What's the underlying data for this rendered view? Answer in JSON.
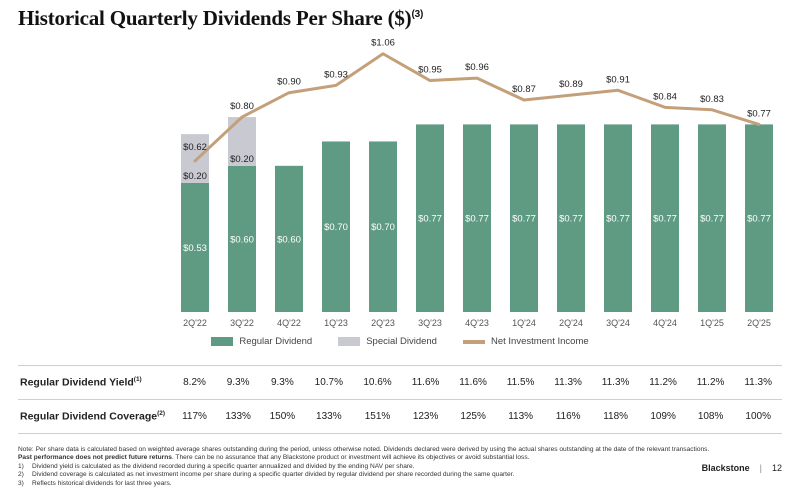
{
  "title": "Historical Quarterly Dividends Per Share ($)",
  "title_footnote": "(3)",
  "colors": {
    "regular": "#5f9a82",
    "special": "#c8c9d1",
    "nii": "#c4a07a"
  },
  "legend": {
    "regular": "Regular Dividend",
    "special": "Special Dividend",
    "nii": "Net Investment Income"
  },
  "chart_data": {
    "type": "bar",
    "categories": [
      "2Q'22",
      "3Q'22",
      "4Q'22",
      "1Q'23",
      "2Q'23",
      "3Q'23",
      "4Q'23",
      "1Q'24",
      "2Q'24",
      "3Q'24",
      "4Q'24",
      "1Q'25",
      "2Q'25"
    ],
    "series": [
      {
        "name": "Regular Dividend",
        "kind": "bar-stacked",
        "values": [
          0.53,
          0.6,
          0.6,
          0.7,
          0.7,
          0.77,
          0.77,
          0.77,
          0.77,
          0.77,
          0.77,
          0.77,
          0.77
        ],
        "labels": [
          "$0.53",
          "$0.60",
          "$0.60",
          "$0.70",
          "$0.70",
          "$0.77",
          "$0.77",
          "$0.77",
          "$0.77",
          "$0.77",
          "$0.77",
          "$0.77",
          "$0.77"
        ]
      },
      {
        "name": "Special Dividend",
        "kind": "bar-stacked",
        "values": [
          0.2,
          0.2,
          0,
          0,
          0,
          0,
          0,
          0,
          0,
          0,
          0,
          0,
          0
        ],
        "labels": [
          "$0.20",
          "$0.20",
          "",
          "",
          "",
          "",
          "",
          "",
          "",
          "",
          "",
          "",
          ""
        ]
      },
      {
        "name": "Net Investment Income",
        "kind": "line",
        "values": [
          0.62,
          0.8,
          0.9,
          0.93,
          1.06,
          0.95,
          0.96,
          0.87,
          0.89,
          0.91,
          0.84,
          0.83,
          0.77
        ],
        "labels": [
          "$0.62",
          "$0.80",
          "$0.90",
          "$0.93",
          "$1.06",
          "$0.95",
          "$0.96",
          "$0.87",
          "$0.89",
          "$0.91",
          "$0.84",
          "$0.83",
          "$0.77"
        ]
      }
    ],
    "ylim": [
      0,
      1.1
    ],
    "grid": false,
    "legend_position": "bottom"
  },
  "table": {
    "rows": [
      {
        "label": "Regular Dividend Yield",
        "footnote": "(1)",
        "values": [
          "8.2%",
          "9.3%",
          "9.3%",
          "10.7%",
          "10.6%",
          "11.6%",
          "11.6%",
          "11.5%",
          "11.3%",
          "11.3%",
          "11.2%",
          "11.2%",
          "11.3%"
        ]
      },
      {
        "label": "Regular Dividend Coverage",
        "footnote": "(2)",
        "values": [
          "117%",
          "133%",
          "150%",
          "133%",
          "151%",
          "123%",
          "125%",
          "113%",
          "116%",
          "118%",
          "109%",
          "108%",
          "100%"
        ]
      }
    ]
  },
  "notes": {
    "main": "Note: Per share data is calculated based on weighted average shares outstanding during the period, unless otherwise noted. Dividends declared were derived by using the actual shares outstanding at the date of the relevant transactions.",
    "bold": "Past performance does not predict future returns",
    "bold_rest": ". There can be no assurance that any Blackstone product or investment will achieve its objectives or avoid substantial loss.",
    "items": [
      {
        "num": "1)",
        "text": "Dividend yield is calculated as the dividend recorded during a specific quarter annualized and divided by the ending NAV per share."
      },
      {
        "num": "2)",
        "text": "Dividend coverage is calculated as net investment income per share during a specific quarter divided by regular dividend per share recorded during the same quarter."
      },
      {
        "num": "3)",
        "text": "Reflects historical dividends for last three years."
      }
    ]
  },
  "footer": {
    "brand": "Blackstone",
    "separator": "|",
    "page": "12"
  }
}
